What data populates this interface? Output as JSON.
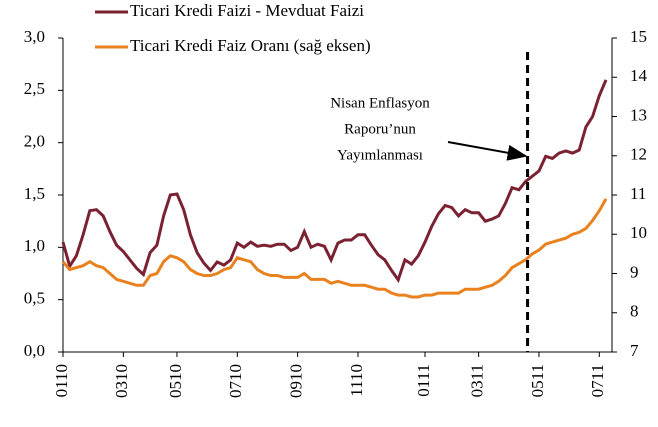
{
  "chart_data": {
    "type": "line",
    "categories": [
      "0110",
      null,
      null,
      null,
      null,
      null,
      null,
      null,
      null,
      "0310",
      null,
      null,
      null,
      null,
      null,
      null,
      null,
      "0510",
      null,
      null,
      null,
      null,
      null,
      null,
      null,
      null,
      "0710",
      null,
      null,
      null,
      null,
      null,
      null,
      null,
      null,
      "0910",
      null,
      null,
      null,
      null,
      null,
      null,
      null,
      null,
      "1110",
      null,
      null,
      null,
      null,
      null,
      null,
      null,
      null,
      null,
      "0111",
      null,
      null,
      null,
      null,
      null,
      null,
      null,
      "0311",
      null,
      null,
      null,
      null,
      null,
      null,
      null,
      null,
      "0511",
      null,
      null,
      null,
      null,
      null,
      null,
      null,
      null,
      "0711",
      null
    ],
    "series": [
      {
        "name": "Ticari Kredi Faizi - Mevduat Faizi",
        "color": "#7b2232",
        "values": [
          1.05,
          0.82,
          0.92,
          1.12,
          1.35,
          1.36,
          1.3,
          1.15,
          1.02,
          0.96,
          0.88,
          0.8,
          0.74,
          0.95,
          1.02,
          1.3,
          1.5,
          1.51,
          1.36,
          1.12,
          0.95,
          0.85,
          0.78,
          0.86,
          0.83,
          0.88,
          1.04,
          1.0,
          1.05,
          1.01,
          1.02,
          1.01,
          1.03,
          1.03,
          0.97,
          1.0,
          1.15,
          1.0,
          1.03,
          1.01,
          0.88,
          1.04,
          1.07,
          1.07,
          1.12,
          1.12,
          1.02,
          0.93,
          0.88,
          0.78,
          0.69,
          0.88,
          0.84,
          0.92,
          1.05,
          1.2,
          1.32,
          1.4,
          1.38,
          1.3,
          1.36,
          1.33,
          1.33,
          1.25,
          1.27,
          1.3,
          1.42,
          1.57,
          1.55,
          1.63,
          1.68,
          1.73,
          1.87,
          1.85,
          1.9,
          1.92,
          1.9,
          1.93,
          2.15,
          2.25,
          2.45,
          2.6
        ]
      },
      {
        "name": "Ticari Kredi Faiz Oranı (sağ eksen)",
        "color": "#e9811f",
        "axis": "y2",
        "values": [
          9.3,
          9.1,
          9.15,
          9.2,
          9.3,
          9.2,
          9.15,
          9.0,
          8.85,
          8.8,
          8.75,
          8.7,
          8.7,
          8.95,
          9.0,
          9.3,
          9.45,
          9.4,
          9.3,
          9.1,
          9.0,
          8.95,
          8.95,
          9.0,
          9.1,
          9.15,
          9.4,
          9.35,
          9.3,
          9.1,
          9.0,
          8.95,
          8.95,
          8.9,
          8.9,
          8.9,
          9.0,
          8.85,
          8.85,
          8.85,
          8.75,
          8.8,
          8.75,
          8.7,
          8.7,
          8.7,
          8.65,
          8.6,
          8.6,
          8.5,
          8.45,
          8.45,
          8.4,
          8.4,
          8.45,
          8.45,
          8.5,
          8.5,
          8.5,
          8.5,
          8.6,
          8.6,
          8.6,
          8.65,
          8.7,
          8.8,
          8.95,
          9.15,
          9.25,
          9.35,
          9.5,
          9.6,
          9.75,
          9.8,
          9.85,
          9.9,
          10.0,
          10.05,
          10.15,
          10.35,
          10.6,
          10.9
        ]
      }
    ],
    "ylim": [
      0,
      3
    ],
    "yticks": [
      {
        "value": 0,
        "label": "0,0"
      },
      {
        "value": 0.5,
        "label": "0,5"
      },
      {
        "value": 1,
        "label": "1,0"
      },
      {
        "value": 1.5,
        "label": "1,5"
      },
      {
        "value": 2,
        "label": "2,0"
      },
      {
        "value": 2.5,
        "label": "2,5"
      },
      {
        "value": 3,
        "label": "3,0"
      }
    ],
    "y2lim": [
      7,
      15
    ],
    "y2ticks": [
      7,
      8,
      9,
      10,
      11,
      12,
      13,
      14,
      15
    ],
    "annotation": [
      "Nisan Enflasyon",
      "Raporu’nun",
      "Yayımlanması"
    ]
  }
}
